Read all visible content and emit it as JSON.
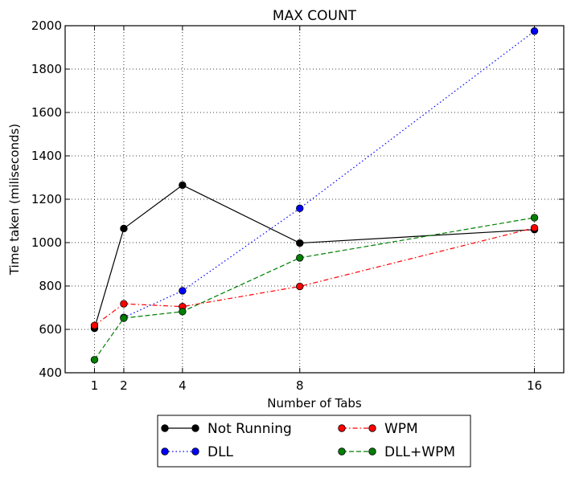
{
  "chart_data": {
    "type": "line",
    "title": "MAX COUNT",
    "xlabel": "Number of Tabs",
    "ylabel": "Time taken (miliseconds)",
    "x": [
      1,
      2,
      4,
      8,
      16
    ],
    "x_tick_labels": [
      "1",
      "2",
      "4",
      "8",
      "16"
    ],
    "xlim": [
      0,
      17
    ],
    "ylim": [
      400,
      2000
    ],
    "y_ticks": [
      400,
      600,
      800,
      1000,
      1200,
      1400,
      1600,
      1800,
      2000
    ],
    "y_tick_labels": [
      "400",
      "600",
      "800",
      "1000",
      "1200",
      "1400",
      "1600",
      "1800",
      "2000"
    ],
    "grid": true,
    "legend_placement": "bottom-center, outside plot, two columns",
    "series": [
      {
        "name": "Not Running",
        "color": "#000000",
        "line_style": "solid",
        "marker": "circle",
        "x": [
          1,
          2,
          4,
          8,
          16
        ],
        "values": [
          605,
          1065,
          1265,
          998,
          1060
        ]
      },
      {
        "name": "DLL",
        "color": "#0000ff",
        "line_style": "dotted",
        "marker": "circle",
        "x": [
          2,
          4,
          8,
          16
        ],
        "values": [
          655,
          778,
          1158,
          1975
        ]
      },
      {
        "name": "WPM",
        "color": "#ff0000",
        "line_style": "dash-dot",
        "marker": "circle",
        "x": [
          1,
          2,
          4,
          8,
          16
        ],
        "values": [
          618,
          718,
          705,
          798,
          1068
        ]
      },
      {
        "name": "DLL+WPM",
        "color": "#007f00",
        "line_style": "dashed",
        "marker": "circle",
        "x": [
          1,
          2,
          4,
          8,
          16
        ],
        "values": [
          460,
          652,
          682,
          930,
          1115
        ]
      }
    ]
  }
}
